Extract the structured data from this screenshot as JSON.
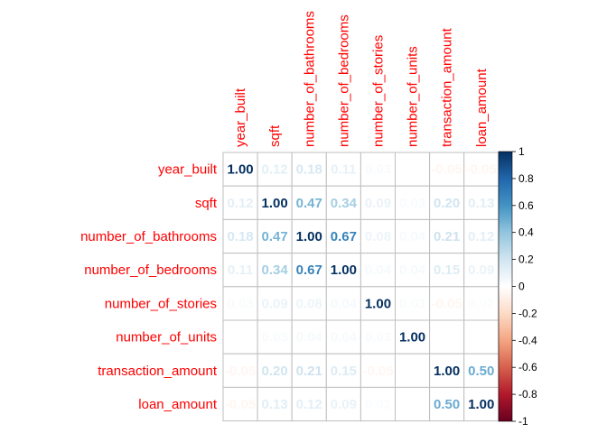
{
  "chart_data": {
    "type": "heatmap",
    "variables": [
      "year_built",
      "sqft",
      "number_of_bathrooms",
      "number_of_bedrooms",
      "number_of_stories",
      "number_of_units",
      "transaction_amount",
      "loan_amount"
    ],
    "matrix": [
      [
        1.0,
        0.12,
        0.18,
        0.11,
        0.03,
        0.0,
        -0.05,
        -0.05
      ],
      [
        0.12,
        1.0,
        0.47,
        0.34,
        0.09,
        0.03,
        0.2,
        0.13
      ],
      [
        0.18,
        0.47,
        1.0,
        0.67,
        0.08,
        0.04,
        0.21,
        0.12
      ],
      [
        0.11,
        0.34,
        0.67,
        1.0,
        0.04,
        0.04,
        0.15,
        0.09
      ],
      [
        0.03,
        0.09,
        0.08,
        0.04,
        1.0,
        0.03,
        -0.05,
        0.02
      ],
      [
        0.0,
        0.03,
        0.04,
        0.04,
        0.03,
        1.0,
        0.0,
        0.0
      ],
      [
        -0.05,
        0.2,
        0.21,
        0.15,
        -0.05,
        0.0,
        1.0,
        0.5
      ],
      [
        -0.05,
        0.13,
        0.12,
        0.09,
        0.02,
        0.0,
        0.5,
        1.0
      ]
    ],
    "cell_labels": [
      [
        "1.00",
        "0.12",
        "0.18",
        "0.11",
        "0.03",
        "",
        "-0.05",
        "-0.05"
      ],
      [
        "0.12",
        "1.00",
        "0.47",
        "0.34",
        "0.09",
        "0.03",
        "0.20",
        "0.13"
      ],
      [
        "0.18",
        "0.47",
        "1.00",
        "0.67",
        "0.08",
        "0.04",
        "0.21",
        "0.12"
      ],
      [
        "0.11",
        "0.34",
        "0.67",
        "1.00",
        "0.04",
        "0.04",
        "0.15",
        "0.09"
      ],
      [
        "0.03",
        "0.09",
        "0.08",
        "0.04",
        "1.00",
        "0.03",
        "-0.05",
        "0.02"
      ],
      [
        "",
        "0.03",
        "0.04",
        "0.04",
        "0.03",
        "1.00",
        "",
        ""
      ],
      [
        "-0.05",
        "0.20",
        "0.21",
        "0.15",
        "-0.05",
        "",
        "1.00",
        "0.50"
      ],
      [
        "-0.05",
        "0.13",
        "0.12",
        "0.09",
        "0.02",
        "",
        "0.50",
        "1.00"
      ]
    ],
    "colorbar": {
      "range": [
        -1,
        1
      ],
      "ticks": [
        "1",
        "0.8",
        "0.6",
        "0.4",
        "0.2",
        "0",
        "-0.2",
        "-0.4",
        "-0.6",
        "-0.8",
        "-1"
      ]
    },
    "colors": {
      "positive": "#053061",
      "negative": "#67001F",
      "label": "#ff0000",
      "grid": "#bfbfbf"
    },
    "palette": [
      "#67001F",
      "#B2182B",
      "#D6604D",
      "#F4A582",
      "#FDDBC7",
      "#FFFFFF",
      "#D1E5F0",
      "#92C5DE",
      "#4393C3",
      "#2166AC",
      "#053061"
    ],
    "xlabel": "",
    "ylabel": ""
  }
}
